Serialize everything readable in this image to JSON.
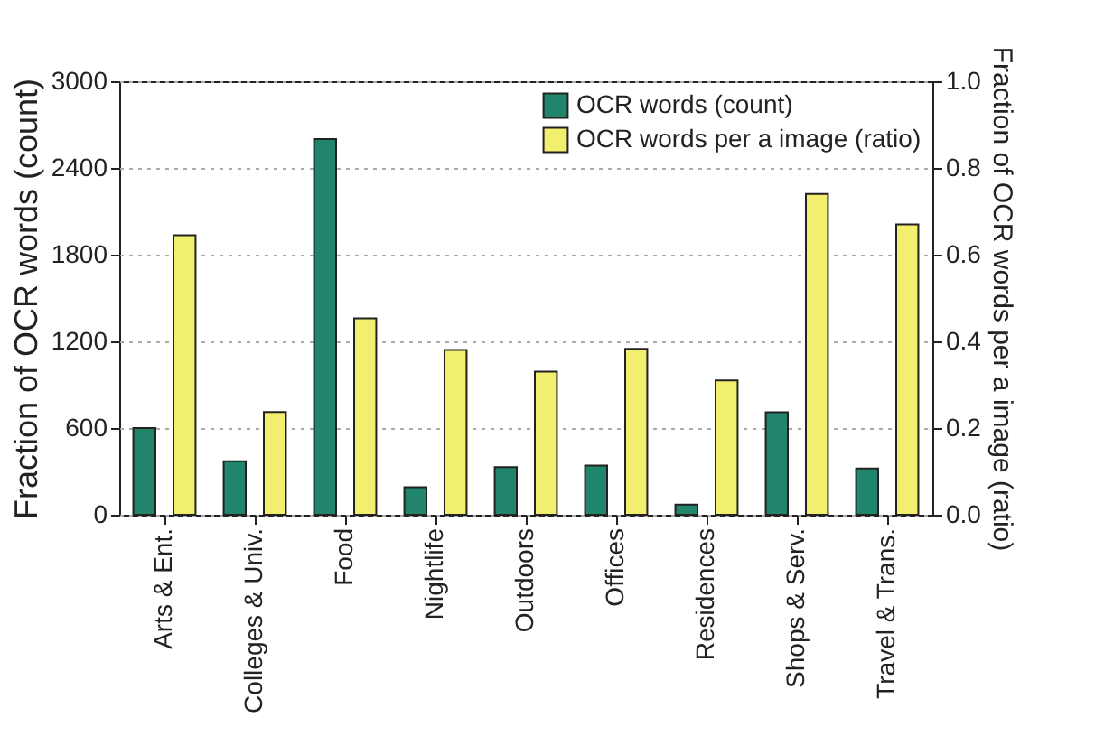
{
  "chart_data": {
    "type": "bar",
    "categories": [
      "Arts & Ent.",
      "Colleges & Univ.",
      "Food",
      "Nightlife",
      "Outdoors",
      "Offices",
      "Residences",
      "Shops & Serv.",
      "Travel & Trans."
    ],
    "series": [
      {
        "name": "OCR words (count)",
        "color": "#21856b",
        "values": [
          600,
          370,
          2600,
          190,
          330,
          340,
          70,
          710,
          320
        ]
      },
      {
        "name": "OCR words per a image (ratio)",
        "color": "#f2ee6e",
        "axis": "y2",
        "values": [
          0.645,
          0.237,
          0.453,
          0.38,
          0.33,
          0.383,
          0.31,
          0.74,
          0.67
        ]
      }
    ],
    "ylabel": "Fraction of OCR words (count)",
    "y2label": "Fraction of OCR words per a image (ratio)",
    "ylim": [
      0,
      3000
    ],
    "yticks": [
      0,
      600,
      1200,
      1800,
      2400,
      3000
    ],
    "y2lim": [
      0,
      1.0
    ],
    "y2ticks": [
      {
        "value": 0,
        "label": "0.0"
      },
      0.2,
      0.4,
      0.6,
      0.8,
      {
        "value": 1,
        "label": "1.0"
      }
    ],
    "grid": "y",
    "legend": "top right"
  }
}
